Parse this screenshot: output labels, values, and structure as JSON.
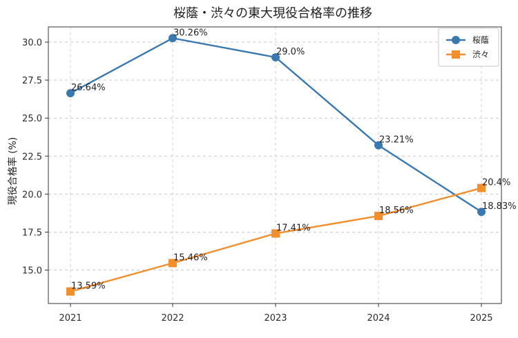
{
  "chart_data": {
    "type": "line",
    "title": "桜蔭・渋々の東大現役合格率の推移",
    "xlabel": "",
    "ylabel": "現役合格率 (%)",
    "categories": [
      "2021",
      "2022",
      "2023",
      "2024",
      "2025"
    ],
    "ylim": [
      12.8,
      31.0
    ],
    "yticks": [
      15.0,
      17.5,
      20.0,
      22.5,
      25.0,
      27.5,
      30.0
    ],
    "ytick_labels": [
      "15.0",
      "17.5",
      "20.0",
      "22.5",
      "25.0",
      "27.5",
      "30.0"
    ],
    "grid": true,
    "legend_position": "top-right",
    "series": [
      {
        "name": "桜蔭",
        "color": "#3a78b0",
        "marker": "circle",
        "values": [
          26.64,
          30.26,
          29.0,
          23.21,
          18.83
        ],
        "labels": [
          "26.64%",
          "30.26%",
          "29.0%",
          "23.21%",
          "18.83%"
        ]
      },
      {
        "name": "渋々",
        "color": "#f28e2b",
        "marker": "square",
        "values": [
          13.59,
          15.46,
          17.41,
          18.56,
          20.4
        ],
        "labels": [
          "13.59%",
          "15.46%",
          "17.41%",
          "18.56%",
          "20.4%"
        ]
      }
    ]
  }
}
